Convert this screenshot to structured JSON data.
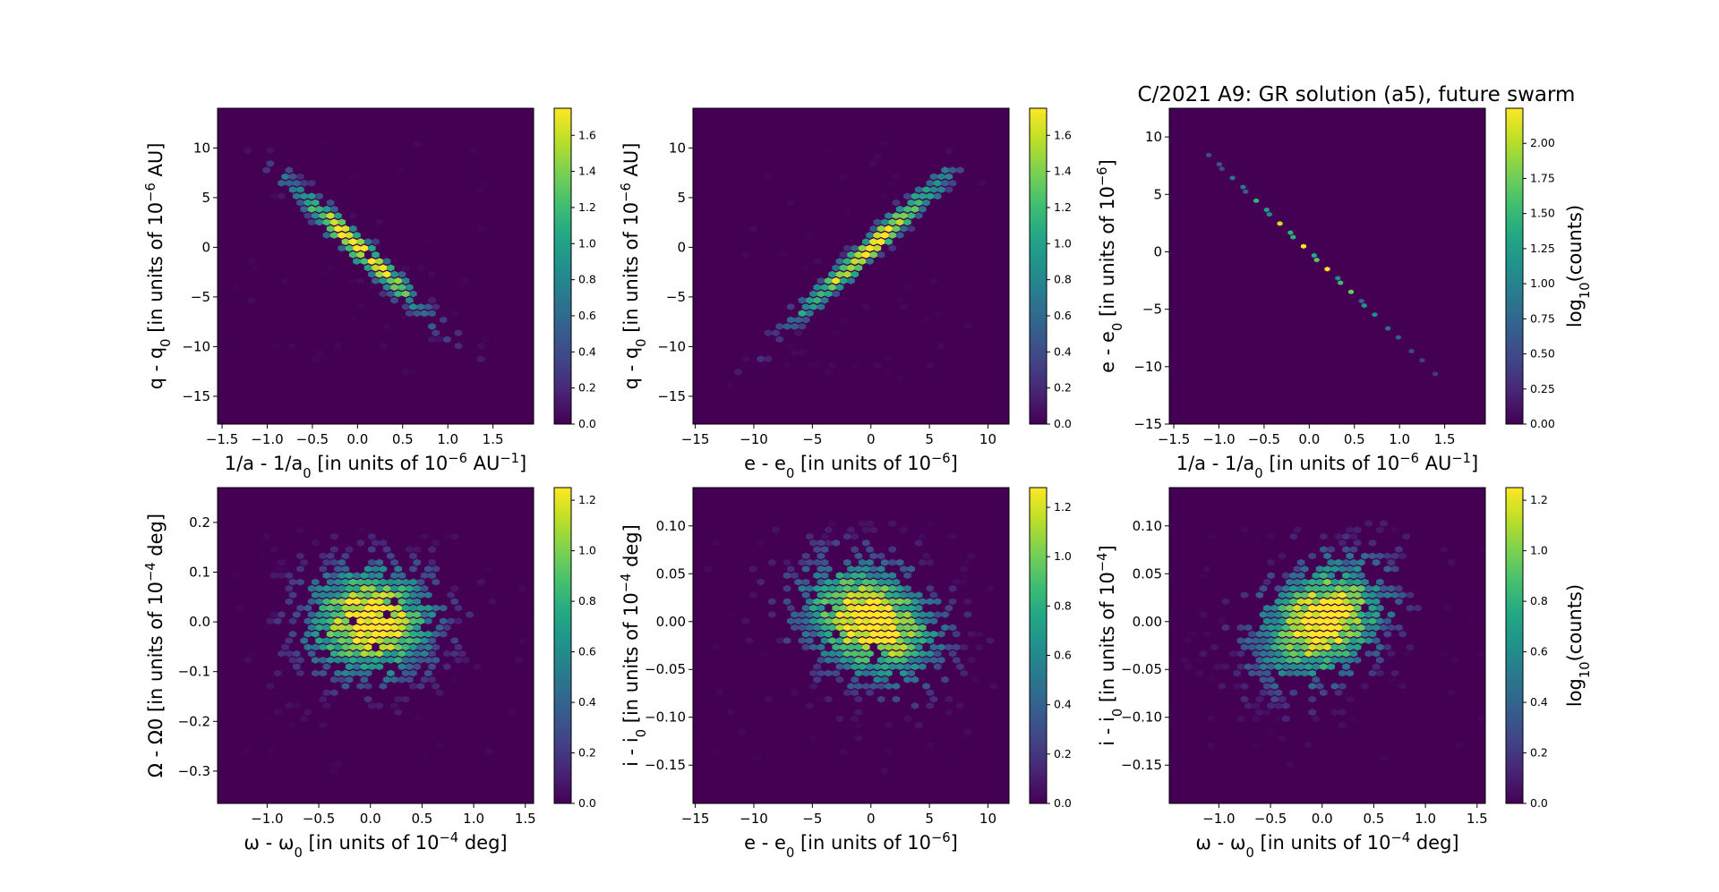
{
  "figure": {
    "title": "C/2021 A9: GR solution (a5), future swarm",
    "colormap": "viridis",
    "background": "#440154"
  },
  "chart_data": [
    {
      "type": "heatmap",
      "subtype": "hexbin",
      "panel": "top-left",
      "xlabel": "1/a - 1/a0 [in units of 10^-6 AU^-1]",
      "ylabel": "q - q0 [in units of 10^-6 AU]",
      "xlim": [
        -1.55,
        1.95
      ],
      "ylim": [
        -17.8,
        14.0
      ],
      "xticks": [
        -1.5,
        -1.0,
        -0.5,
        0.0,
        0.5,
        1.0,
        1.5
      ],
      "xtick_labels": [
        "−1.5",
        "−1.0",
        "−0.5",
        "0.0",
        "0.5",
        "1.0",
        "1.5"
      ],
      "yticks": [
        -15,
        -10,
        -5,
        0,
        5,
        10
      ],
      "ytick_labels": [
        "−15",
        "−10",
        "−5",
        "0",
        "5",
        "10"
      ],
      "distribution": {
        "shape": "correlated",
        "x_range": [
          -1.4,
          1.5
        ],
        "y_range": [
          -13.5,
          12.5
        ],
        "slope": -8.5,
        "sigma_x": 0.42,
        "sigma_perp": 1.1,
        "peak_x": 0.0,
        "peak_y": 0.0
      },
      "colorbar": {
        "label": "",
        "range": [
          0,
          1.75
        ],
        "ticks": [
          0.0,
          0.2,
          0.4,
          0.6,
          0.8,
          1.0,
          1.2,
          1.4,
          1.6
        ],
        "tick_labels": [
          "0.0",
          "0.2",
          "0.4",
          "0.6",
          "0.8",
          "1.0",
          "1.2",
          "1.4",
          "1.6"
        ]
      }
    },
    {
      "type": "heatmap",
      "subtype": "hexbin",
      "panel": "top-middle",
      "xlabel": "e - e0 [in units of 10^-6]",
      "ylabel": "q - q0 [in units of 10^-6 AU]",
      "xlim": [
        -15.2,
        11.8
      ],
      "ylim": [
        -17.8,
        14.0
      ],
      "xticks": [
        -15,
        -10,
        -5,
        0,
        5,
        10
      ],
      "xtick_labels": [
        "−15",
        "−10",
        "−5",
        "0",
        "5",
        "10"
      ],
      "yticks": [
        -15,
        -10,
        -5,
        0,
        5,
        10
      ],
      "ytick_labels": [
        "−15",
        "−10",
        "−5",
        "0",
        "5",
        "10"
      ],
      "distribution": {
        "shape": "correlated",
        "x_range": [
          -12,
          10
        ],
        "y_range": [
          -14,
          12
        ],
        "slope": 1.1,
        "sigma_x": 3.8,
        "sigma_perp": 1.0,
        "peak_x": 0.0,
        "peak_y": 0.0
      },
      "colorbar": {
        "label": "",
        "range": [
          0,
          1.75
        ],
        "ticks": [
          0.0,
          0.2,
          0.4,
          0.6,
          0.8,
          1.0,
          1.2,
          1.4,
          1.6
        ],
        "tick_labels": [
          "0.0",
          "0.2",
          "0.4",
          "0.6",
          "0.8",
          "1.0",
          "1.2",
          "1.4",
          "1.6"
        ]
      }
    },
    {
      "type": "heatmap",
      "subtype": "hexbin",
      "panel": "top-right",
      "xlabel": "1/a - 1/a0 [in units of 10^-6 AU^-1]",
      "ylabel": "e - e0 [in units of 10^-6]",
      "xlim": [
        -1.55,
        1.95
      ],
      "ylim": [
        -15.0,
        12.5
      ],
      "xticks": [
        -1.5,
        -1.0,
        -0.5,
        0.0,
        0.5,
        1.0,
        1.5
      ],
      "xtick_labels": [
        "−1.5",
        "−1.0",
        "−0.5",
        "0.0",
        "0.5",
        "1.0",
        "1.5"
      ],
      "yticks": [
        -15,
        -10,
        -5,
        0,
        5,
        10
      ],
      "ytick_labels": [
        "−15",
        "−10",
        "−5",
        "0",
        "5",
        "10"
      ],
      "distribution": {
        "shape": "line",
        "x_range": [
          -1.5,
          1.5
        ],
        "y_range": [
          -12,
          12
        ],
        "slope": -7.6,
        "sigma_x": 0.42,
        "sigma_perp": 0.08,
        "peak_x": 0.0,
        "peak_y": 0.0
      },
      "colorbar": {
        "label": "log10(counts)",
        "range": [
          0,
          2.25
        ],
        "ticks": [
          0.0,
          0.25,
          0.5,
          0.75,
          1.0,
          1.25,
          1.5,
          1.75,
          2.0
        ],
        "tick_labels": [
          "0.00",
          "0.25",
          "0.50",
          "0.75",
          "1.00",
          "1.25",
          "1.50",
          "1.75",
          "2.00"
        ]
      }
    },
    {
      "type": "heatmap",
      "subtype": "hexbin",
      "panel": "bottom-left",
      "xlabel": "ω - ω0 [in units of 10^-4 deg]",
      "ylabel": "Ω - Ω0 [in units of 10^-4 deg]",
      "xlim": [
        -1.48,
        1.58
      ],
      "ylim": [
        -0.365,
        0.27
      ],
      "xticks": [
        -1.0,
        -0.5,
        0.0,
        0.5,
        1.0,
        1.5
      ],
      "xtick_labels": [
        "−1.0",
        "−0.5",
        "0.0",
        "0.5",
        "1.0",
        "1.5"
      ],
      "yticks": [
        -0.3,
        -0.2,
        -0.1,
        0.0,
        0.1,
        0.2
      ],
      "ytick_labels": [
        "−0.3",
        "−0.2",
        "−0.1",
        "0.0",
        "0.1",
        "0.2"
      ],
      "distribution": {
        "shape": "blob",
        "x_range": [
          -1.3,
          1.55
        ],
        "y_range": [
          -0.31,
          0.27
        ],
        "sigma_x": 0.42,
        "sigma_y": 0.075,
        "peak_x": 0.0,
        "peak_y": 0.0
      },
      "colorbar": {
        "label": "",
        "range": [
          0,
          1.25
        ],
        "ticks": [
          0.0,
          0.2,
          0.4,
          0.6,
          0.8,
          1.0,
          1.2
        ],
        "tick_labels": [
          "0.0",
          "0.2",
          "0.4",
          "0.6",
          "0.8",
          "1.0",
          "1.2"
        ]
      }
    },
    {
      "type": "heatmap",
      "subtype": "hexbin",
      "panel": "bottom-middle",
      "xlabel": "e - e0 [in units of 10^-6]",
      "ylabel": "i - i0 [in units of 10^-4 deg]",
      "xlim": [
        -15.2,
        11.8
      ],
      "ylim": [
        -0.19,
        0.14
      ],
      "xticks": [
        -15,
        -10,
        -5,
        0,
        5,
        10
      ],
      "xtick_labels": [
        "−15",
        "−10",
        "−5",
        "0",
        "5",
        "10"
      ],
      "yticks": [
        -0.15,
        -0.1,
        -0.05,
        0.0,
        0.05,
        0.1
      ],
      "ytick_labels": [
        "−0.15",
        "−0.10",
        "−0.05",
        "0.00",
        "0.05",
        "0.10"
      ],
      "distribution": {
        "shape": "blob",
        "x_range": [
          -14,
          11
        ],
        "y_range": [
          -0.16,
          0.14
        ],
        "sigma_x": 3.9,
        "sigma_y": 0.042,
        "rho": -0.25,
        "peak_x": 0.0,
        "peak_y": 0.0
      },
      "colorbar": {
        "label": "",
        "range": [
          0,
          1.28
        ],
        "ticks": [
          0.0,
          0.2,
          0.4,
          0.6,
          0.8,
          1.0,
          1.2
        ],
        "tick_labels": [
          "0.0",
          "0.2",
          "0.4",
          "0.6",
          "0.8",
          "1.0",
          "1.2"
        ]
      }
    },
    {
      "type": "heatmap",
      "subtype": "hexbin",
      "panel": "bottom-right",
      "xlabel": "ω - ω0 [in units of 10^-4 deg]",
      "ylabel": "i - i0 [in units of 10^-4]",
      "xlim": [
        -1.48,
        1.58
      ],
      "ylim": [
        -0.19,
        0.14
      ],
      "xticks": [
        -1.0,
        -0.5,
        0.0,
        0.5,
        1.0,
        1.5
      ],
      "xtick_labels": [
        "−1.0",
        "−0.5",
        "0.0",
        "0.5",
        "1.0",
        "1.5"
      ],
      "yticks": [
        -0.15,
        -0.1,
        -0.05,
        0.0,
        0.05,
        0.1
      ],
      "ytick_labels": [
        "−0.15",
        "−0.10",
        "−0.05",
        "0.00",
        "0.05",
        "0.10"
      ],
      "distribution": {
        "shape": "blob",
        "x_range": [
          -1.4,
          1.55
        ],
        "y_range": [
          -0.16,
          0.14
        ],
        "sigma_x": 0.42,
        "sigma_y": 0.042,
        "rho": 0.3,
        "peak_x": 0.0,
        "peak_y": 0.0
      },
      "colorbar": {
        "label": "log10(counts)",
        "range": [
          0,
          1.25
        ],
        "ticks": [
          0.0,
          0.2,
          0.4,
          0.6,
          0.8,
          1.0,
          1.2
        ],
        "tick_labels": [
          "0.0",
          "0.2",
          "0.4",
          "0.6",
          "0.8",
          "1.0",
          "1.2"
        ]
      }
    }
  ]
}
